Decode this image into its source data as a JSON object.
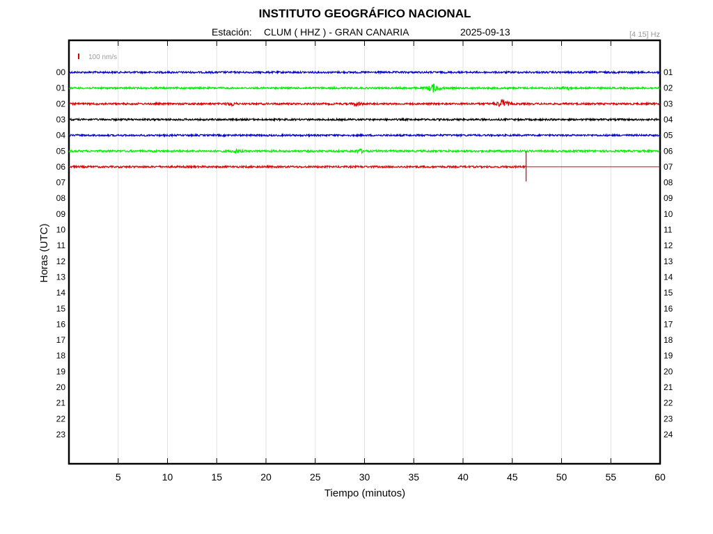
{
  "chart_data": {
    "type": "line",
    "title": "INSTITUTO GEOGRÁFICO NACIONAL",
    "station_label": "Estación:",
    "station": "CLUM ( HHZ ) - GRAN CANARIA",
    "date": "2025-09-13",
    "filter_band": "[4 15] Hz",
    "scale_label": "100 nm/s",
    "xlabel": "Tiempo (minutos)",
    "ylabel": "Horas (UTC)",
    "xlim": [
      0,
      60
    ],
    "x_ticks": [
      "5",
      "10",
      "15",
      "20",
      "25",
      "30",
      "35",
      "40",
      "45",
      "50",
      "55",
      "60"
    ],
    "y_ticks_left": [
      "00",
      "01",
      "02",
      "03",
      "04",
      "05",
      "06",
      "07",
      "08",
      "09",
      "10",
      "11",
      "12",
      "13",
      "14",
      "15",
      "16",
      "17",
      "18",
      "19",
      "20",
      "21",
      "22",
      "23"
    ],
    "y_ticks_right": [
      "01",
      "02",
      "03",
      "04",
      "05",
      "06",
      "07",
      "08",
      "09",
      "10",
      "11",
      "12",
      "13",
      "14",
      "15",
      "16",
      "17",
      "18",
      "19",
      "20",
      "21",
      "22",
      "23",
      "24"
    ],
    "grid": "vertical",
    "series": [
      {
        "hour": "00",
        "color": "#0000cc",
        "end_minute": 60,
        "events": []
      },
      {
        "hour": "01",
        "color": "#00ee00",
        "end_minute": 60,
        "events": [
          {
            "minute": 37.0,
            "amplitude": "medium"
          },
          {
            "minute": 50.5,
            "amplitude": "small"
          }
        ]
      },
      {
        "hour": "02",
        "color": "#dd0000",
        "end_minute": 60,
        "events": [
          {
            "minute": 16.5,
            "amplitude": "small"
          },
          {
            "minute": 29.3,
            "amplitude": "small"
          },
          {
            "minute": 44.0,
            "amplitude": "medium"
          }
        ]
      },
      {
        "hour": "03",
        "color": "#000000",
        "end_minute": 60,
        "events": []
      },
      {
        "hour": "04",
        "color": "#0000cc",
        "end_minute": 60,
        "events": []
      },
      {
        "hour": "05",
        "color": "#00ee00",
        "end_minute": 60,
        "events": [
          {
            "minute": 17.0,
            "amplitude": "small"
          },
          {
            "minute": 29.5,
            "amplitude": "small"
          }
        ]
      },
      {
        "hour": "06",
        "color": "#dd0000",
        "end_minute": 46.4,
        "events": []
      }
    ],
    "current_time_marker": {
      "hour": "06",
      "minute": 46.4
    }
  }
}
